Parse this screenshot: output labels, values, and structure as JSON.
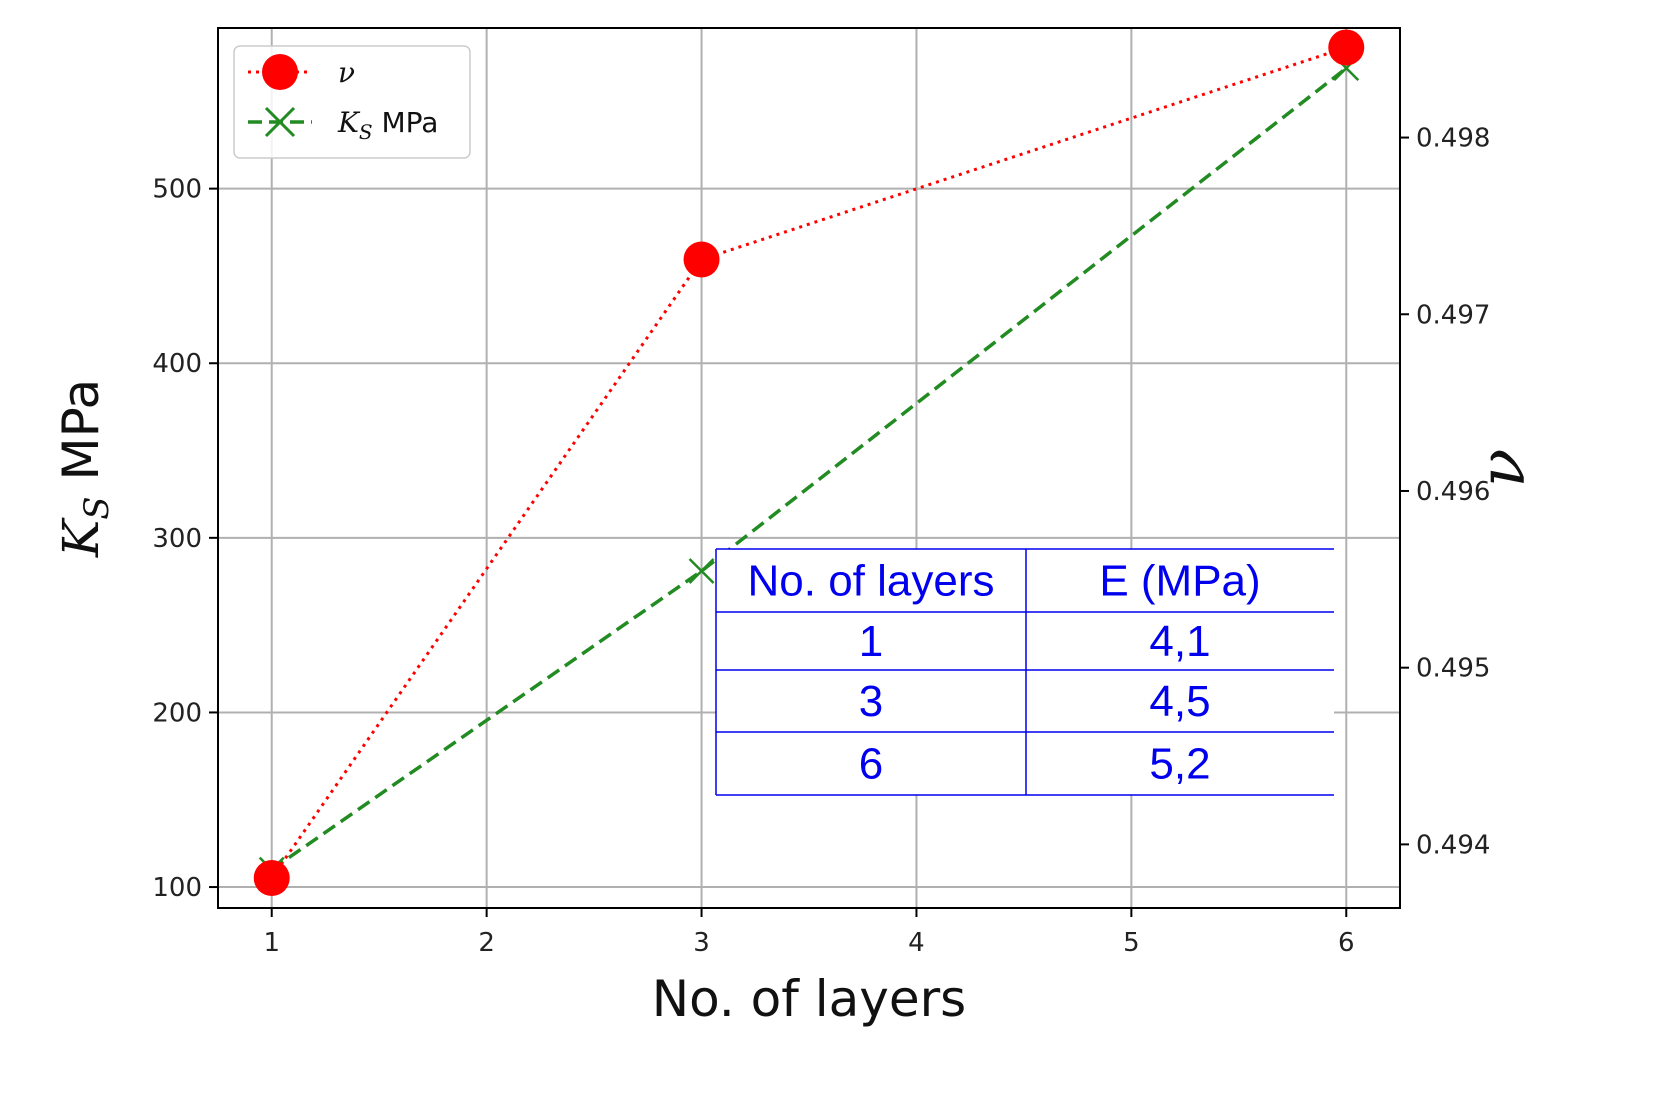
{
  "chart_data": {
    "type": "line",
    "xlabel": "No. of layers",
    "ylabel_left_base": "K",
    "ylabel_left_sub": "S",
    "ylabel_left_unit": " MPa",
    "ylabel_right": "ν",
    "x_ticks": [
      "1",
      "2",
      "3",
      "4",
      "5",
      "6"
    ],
    "xlim": [
      0.75,
      6.25
    ],
    "ylim_left": [
      88,
      592
    ],
    "ylim_right": [
      0.49364,
      0.49862
    ],
    "y_left_ticks": [
      "100",
      "200",
      "300",
      "400",
      "500"
    ],
    "y_right_ticks": [
      "0.494",
      "0.495",
      "0.496",
      "0.497",
      "0.498"
    ],
    "grid": true,
    "legend_placement": "top-left",
    "series": [
      {
        "name": "ν",
        "axis": "right",
        "color": "#ff0000",
        "style": "dotted",
        "marker": "circle",
        "points": [
          {
            "x": 1,
            "y": 0.49381
          },
          {
            "x": 3,
            "y": 0.49731
          },
          {
            "x": 6,
            "y": 0.49851
          }
        ]
      },
      {
        "name_base": "K",
        "name_sub": "S",
        "name_unit": " MPa",
        "axis": "left",
        "color": "#228b22",
        "style": "dashed",
        "marker": "x",
        "points": [
          {
            "x": 1,
            "y": 110
          },
          {
            "x": 3,
            "y": 281
          },
          {
            "x": 6,
            "y": 569
          }
        ]
      }
    ],
    "table": {
      "headers": [
        "No. of layers",
        "E (MPa)"
      ],
      "rows": [
        [
          "1",
          "4,1"
        ],
        [
          "3",
          "4,5"
        ],
        [
          "6",
          "5,2"
        ]
      ],
      "color": "#0000ee"
    }
  }
}
